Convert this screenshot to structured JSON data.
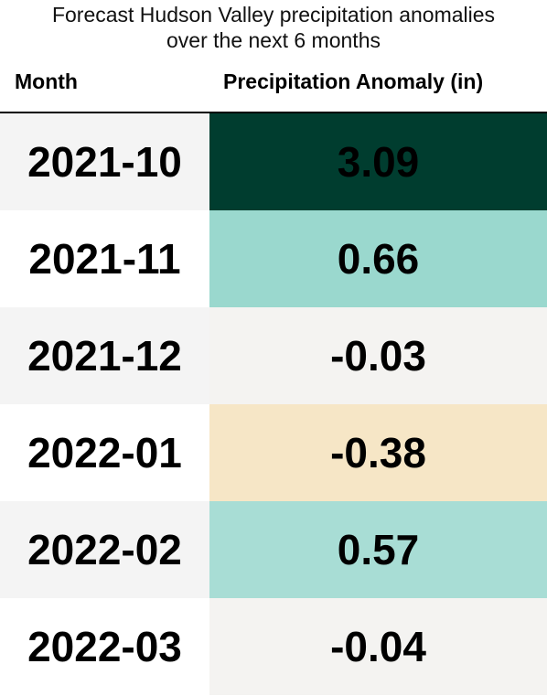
{
  "title_line1": "Forecast Hudson Valley precipitation anomalies",
  "title_line2": "over the next 6 months",
  "columns": [
    "Month",
    "Precipitation Anomaly (in)"
  ],
  "chart_data": {
    "type": "table",
    "title": "Forecast Hudson Valley precipitation anomalies over the next 6 months",
    "columns": [
      "Month",
      "Precipitation Anomaly (in)"
    ],
    "rows": [
      {
        "month": "2021-10",
        "anomaly": "3.09",
        "color": "#003d2f"
      },
      {
        "month": "2021-11",
        "anomaly": "0.66",
        "color": "#9ad8ce"
      },
      {
        "month": "2021-12",
        "anomaly": "-0.03",
        "color": "#f4f3f1"
      },
      {
        "month": "2022-01",
        "anomaly": "-0.38",
        "color": "#f6e6c6"
      },
      {
        "month": "2022-02",
        "anomaly": "0.57",
        "color": "#a8ddd5"
      },
      {
        "month": "2022-03",
        "anomaly": "-0.04",
        "color": "#f4f3f1"
      }
    ]
  }
}
